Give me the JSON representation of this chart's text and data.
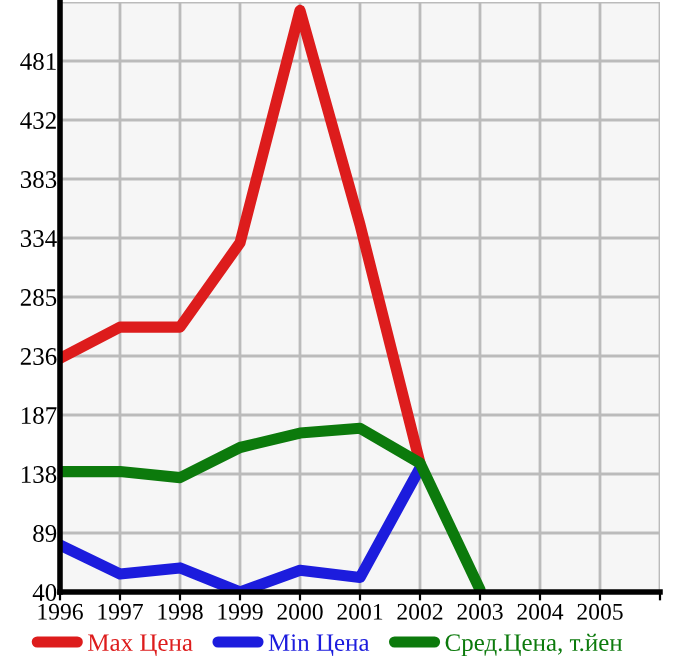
{
  "chart_data": {
    "type": "line",
    "x": [
      1996,
      1997,
      1998,
      1999,
      2000,
      2001,
      2002,
      2003
    ],
    "series": [
      {
        "name": "Max Цена",
        "color": "#dd1c1c",
        "values": [
          234,
          260,
          260,
          330,
          523,
          345,
          147,
          null
        ]
      },
      {
        "name": "Min Цена",
        "color": "#1c1cdd",
        "values": [
          79,
          55,
          60,
          40,
          58,
          52,
          143,
          null
        ]
      },
      {
        "name": "Сред.Цена, т.йен",
        "color": "#0c7a0c",
        "values": [
          140,
          140,
          135,
          160,
          172,
          176,
          147,
          42
        ]
      }
    ],
    "xlim": [
      1996,
      2006
    ],
    "ylim": [
      40,
      530
    ],
    "xticks": [
      1996,
      1997,
      1998,
      1999,
      2000,
      2001,
      2002,
      2003,
      2004,
      2005,
      {
        "value": 2006,
        "label": null
      }
    ],
    "yticks": [
      40,
      89,
      138,
      187,
      236,
      285,
      334,
      383,
      432,
      481,
      {
        "value": 530,
        "label": null
      }
    ],
    "grid": true,
    "legend": "bottom",
    "marker": "none",
    "line_style": "solid"
  }
}
